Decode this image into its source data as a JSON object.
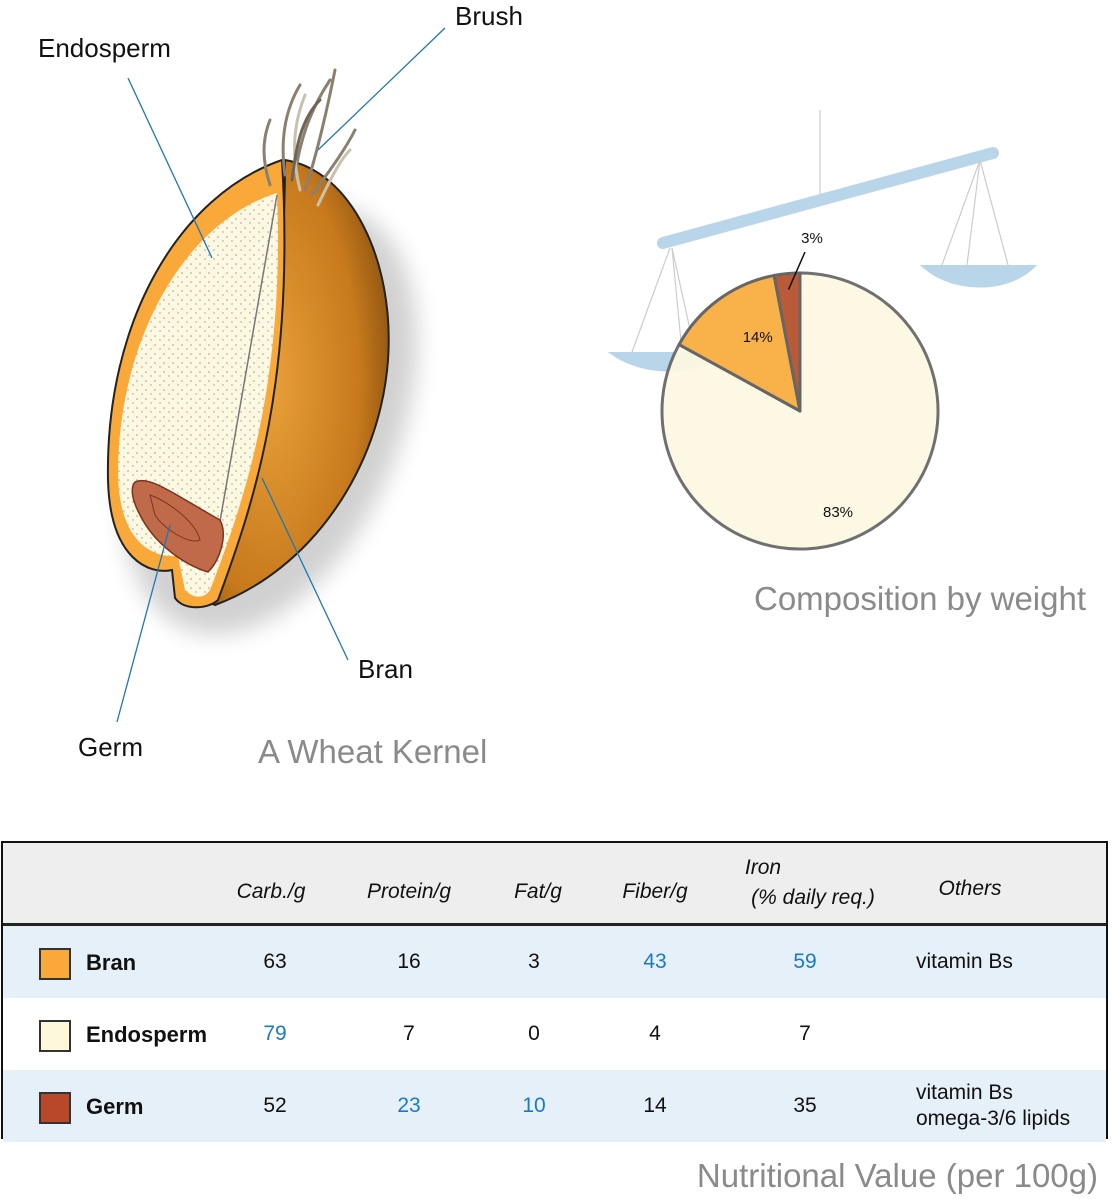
{
  "kernel": {
    "title": "A Wheat Kernel",
    "labels": {
      "endosperm": "Endosperm",
      "brush": "Brush",
      "bran": "Bran",
      "germ": "Germ"
    }
  },
  "composition": {
    "title": "Composition by weight",
    "chart_data": {
      "type": "pie",
      "slices": [
        {
          "part": "Endosperm",
          "value": 83,
          "label": "83%",
          "color": "#fdf8e1"
        },
        {
          "part": "Bran",
          "value": 14,
          "label": "14%",
          "color": "#f9b24a"
        },
        {
          "part": "Germ",
          "value": 3,
          "label": "3%",
          "color": "#b95a38"
        }
      ]
    }
  },
  "nutrition": {
    "title": "Nutritional Value (per 100g)",
    "headers": [
      "Carb./g",
      "Protein/g",
      "Fat/g",
      "Fiber/g",
      "Iron",
      "(% daily req.)",
      "Others"
    ],
    "highlight_color": "#1a7bc4",
    "rows": [
      {
        "name": "Bran",
        "color": "#f9a83a",
        "values": [
          "63",
          "16",
          "3",
          "43",
          "59"
        ],
        "highlighted": [
          false,
          false,
          false,
          true,
          true
        ],
        "others": [
          "vitamin Bs"
        ]
      },
      {
        "name": "Endosperm",
        "color": "#fdf8dc",
        "values": [
          "79",
          "7",
          "0",
          "4",
          "7"
        ],
        "highlighted": [
          true,
          false,
          false,
          false,
          false
        ],
        "others": []
      },
      {
        "name": "Germ",
        "color": "#b8482a",
        "values": [
          "52",
          "23",
          "10",
          "14",
          "35"
        ],
        "highlighted": [
          false,
          true,
          true,
          false,
          false
        ],
        "others": [
          "vitamin Bs",
          "omega-3/6 lipids"
        ]
      }
    ]
  }
}
